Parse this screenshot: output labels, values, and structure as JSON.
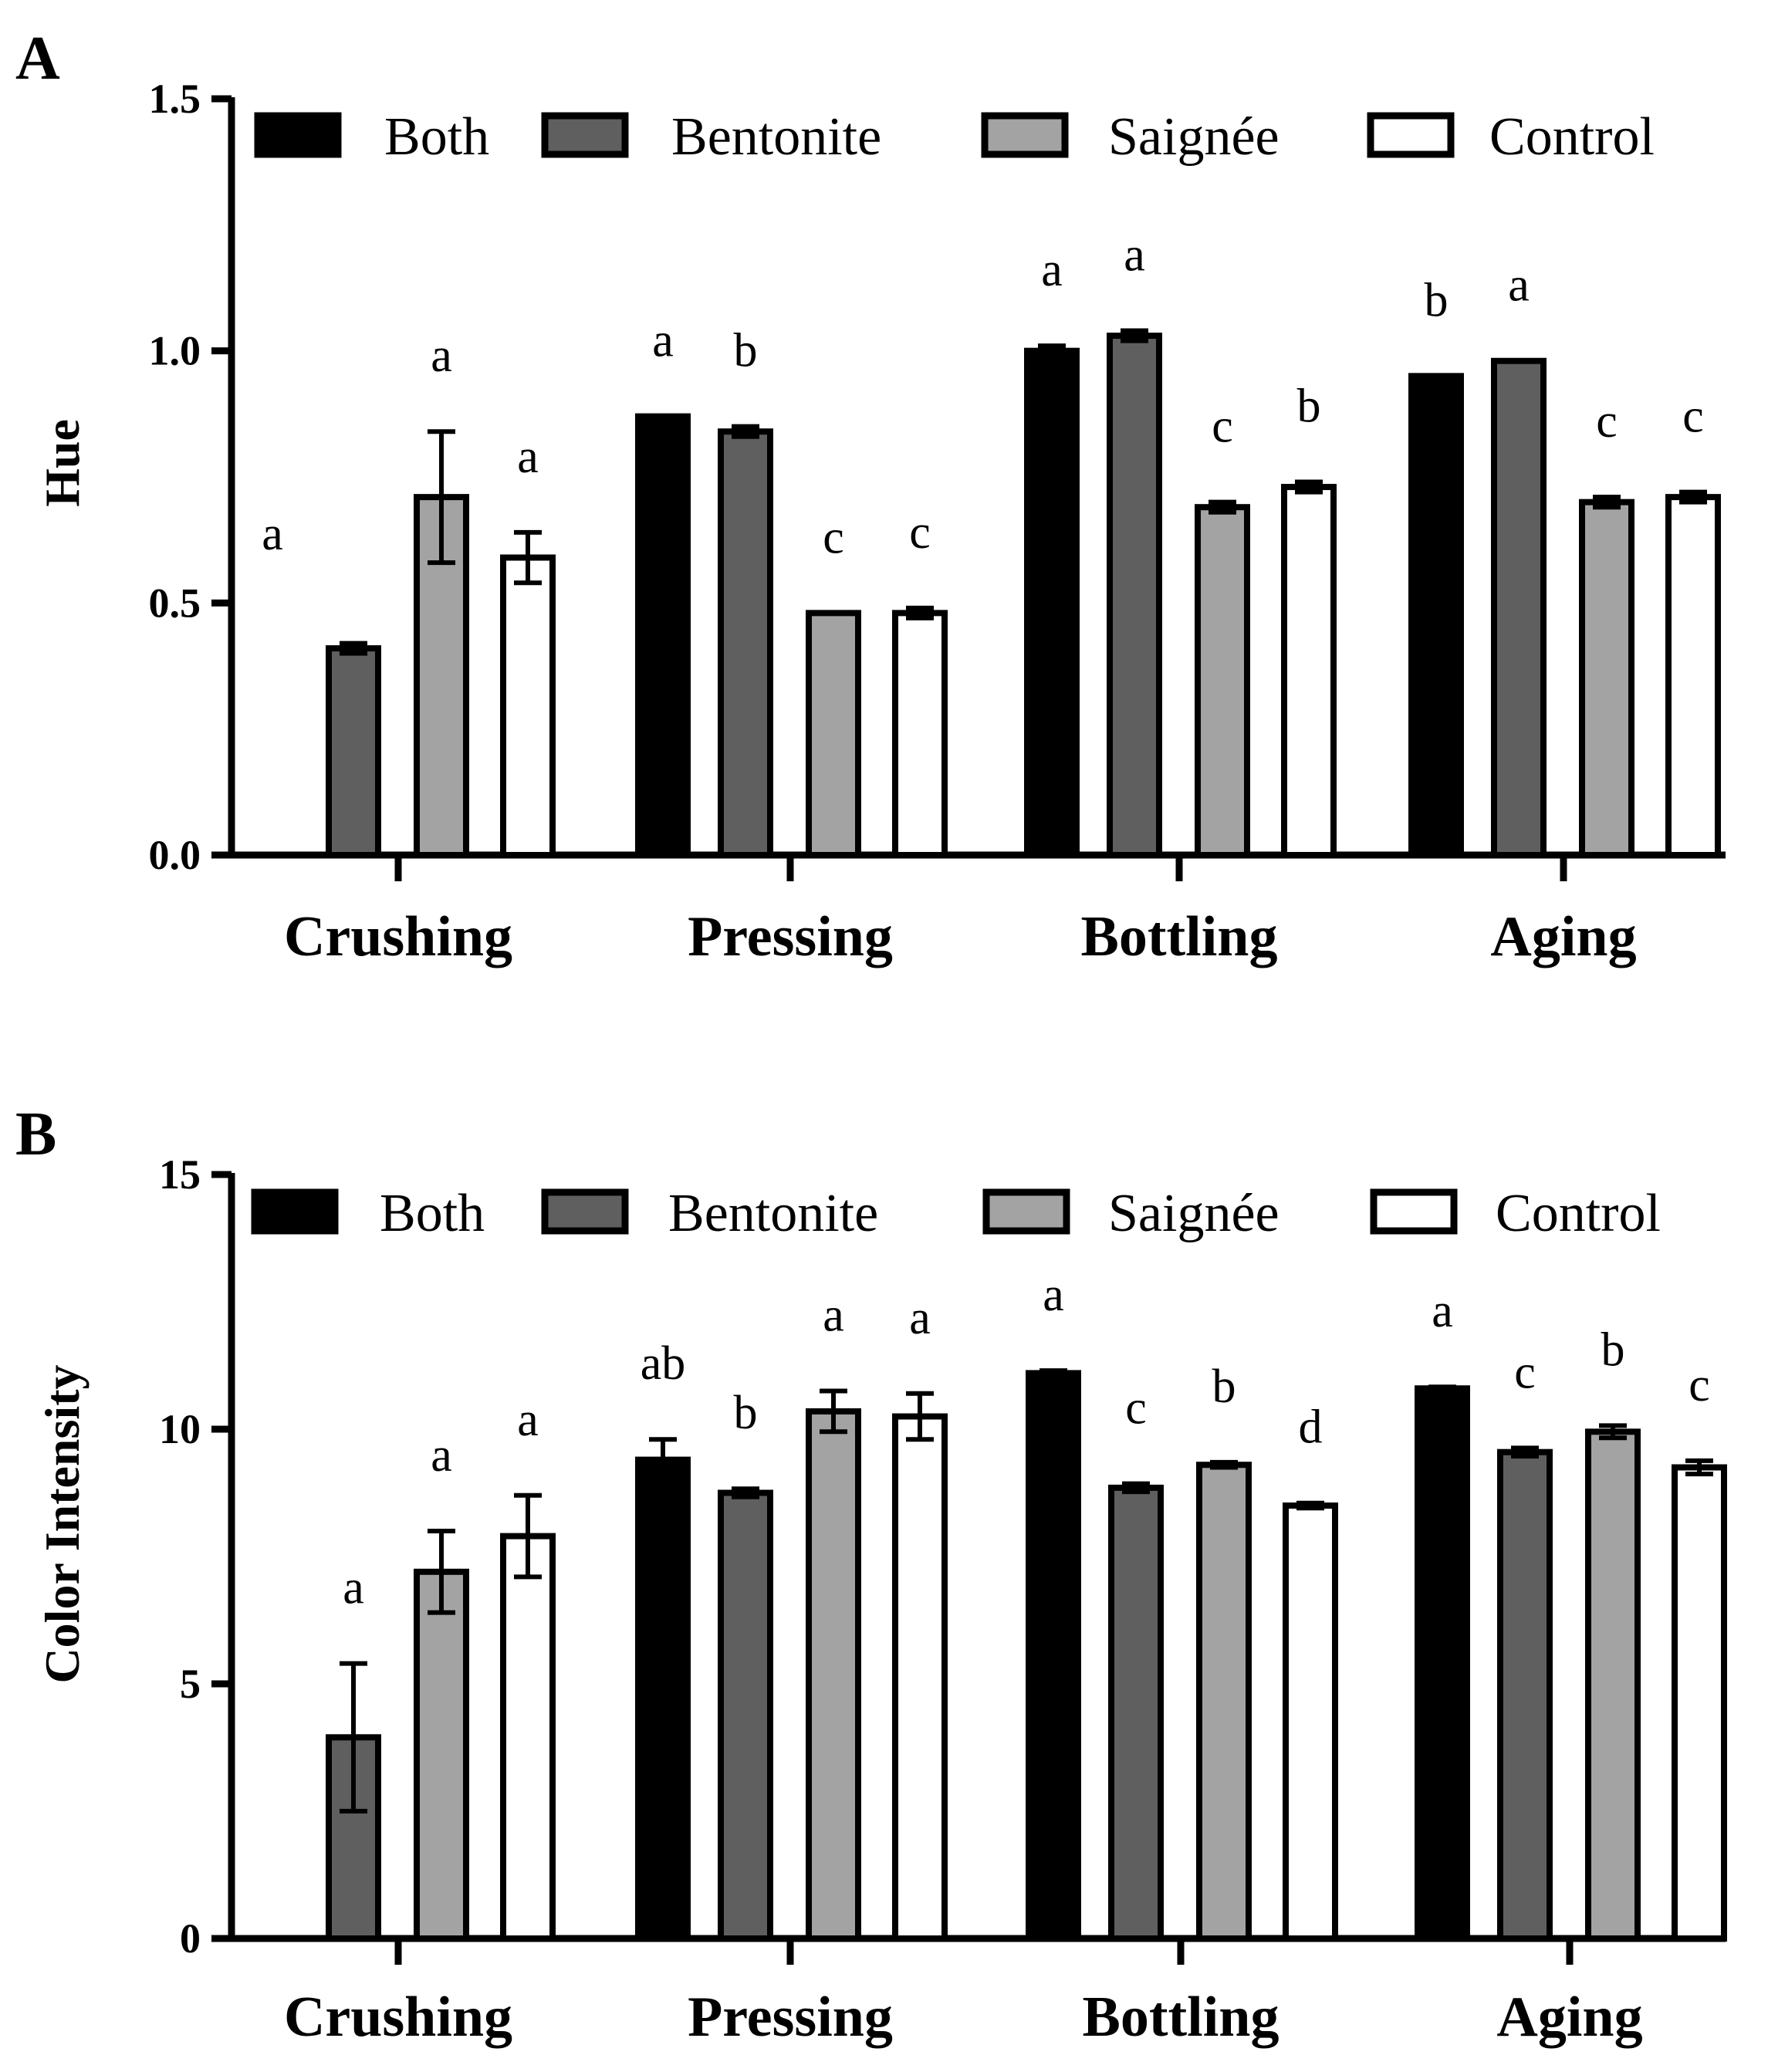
{
  "chart_data": [
    {
      "panel": "A",
      "type": "bar",
      "title": "",
      "xlabel": "",
      "ylabel": "Hue",
      "ylim": [
        0,
        1.5
      ],
      "yticks": [
        "0.0",
        "0.5",
        "1.0",
        "1.5"
      ],
      "categories": [
        "Crushing",
        "Pressing",
        "Bottling",
        "Aging"
      ],
      "legend": "top",
      "series": [
        {
          "name": "Both",
          "fill": "#000000",
          "values": [
            null,
            0.87,
            1.0,
            0.95
          ],
          "errors": [
            null,
            0.0,
            0.01,
            0.0
          ],
          "labels": [
            null,
            "a",
            "a",
            "b"
          ]
        },
        {
          "name": "Bentonite",
          "fill": "#5f5f5f",
          "values": [
            0.41,
            0.84,
            1.03,
            0.98
          ],
          "errors": [
            0.01,
            0.01,
            0.01,
            0.0
          ],
          "labels": [
            null,
            "b",
            "a",
            "a"
          ]
        },
        {
          "name": "Saignée",
          "fill": "#a3a3a3",
          "values": [
            0.71,
            0.48,
            0.69,
            0.7
          ],
          "errors": [
            0.13,
            0.0,
            0.01,
            0.01
          ],
          "labels": [
            "a",
            "c",
            "c",
            "c"
          ]
        },
        {
          "name": "Control",
          "fill": "#ffffff",
          "values": [
            0.59,
            0.48,
            0.73,
            0.71
          ],
          "errors": [
            0.05,
            0.01,
            0.01,
            0.01
          ],
          "labels": [
            "a",
            "c",
            "b",
            "c"
          ]
        }
      ],
      "group_labels": [
        "a",
        null,
        null,
        null
      ]
    },
    {
      "panel": "B",
      "type": "bar",
      "title": "",
      "xlabel": "",
      "ylabel": "Color Intensity",
      "ylim": [
        0,
        15
      ],
      "yticks": [
        "0",
        "5",
        "10",
        "15"
      ],
      "categories": [
        "Crushing",
        "Pressing",
        "Bottling",
        "Aging"
      ],
      "legend": "top",
      "series": [
        {
          "name": "Both",
          "fill": "#000000",
          "values": [
            null,
            9.4,
            11.1,
            10.8
          ],
          "errors": [
            null,
            0.4,
            0.05,
            0.03
          ],
          "labels": [
            null,
            "ab",
            "a",
            "a"
          ]
        },
        {
          "name": "Bentonite",
          "fill": "#5f5f5f",
          "values": [
            3.95,
            8.75,
            8.85,
            9.55
          ],
          "errors": [
            1.45,
            0.08,
            0.08,
            0.08
          ],
          "labels": [
            "a",
            "b",
            "c",
            "c"
          ]
        },
        {
          "name": "Saignée",
          "fill": "#a3a3a3",
          "values": [
            7.2,
            10.35,
            9.3,
            9.95
          ],
          "errors": [
            0.8,
            0.4,
            0.05,
            0.12
          ],
          "labels": [
            "a",
            "a",
            "b",
            "b"
          ]
        },
        {
          "name": "Control",
          "fill": "#ffffff",
          "values": [
            7.9,
            10.25,
            8.5,
            9.25
          ],
          "errors": [
            0.8,
            0.45,
            0.05,
            0.13
          ],
          "labels": [
            "a",
            "a",
            "d",
            "c"
          ]
        }
      ]
    }
  ]
}
